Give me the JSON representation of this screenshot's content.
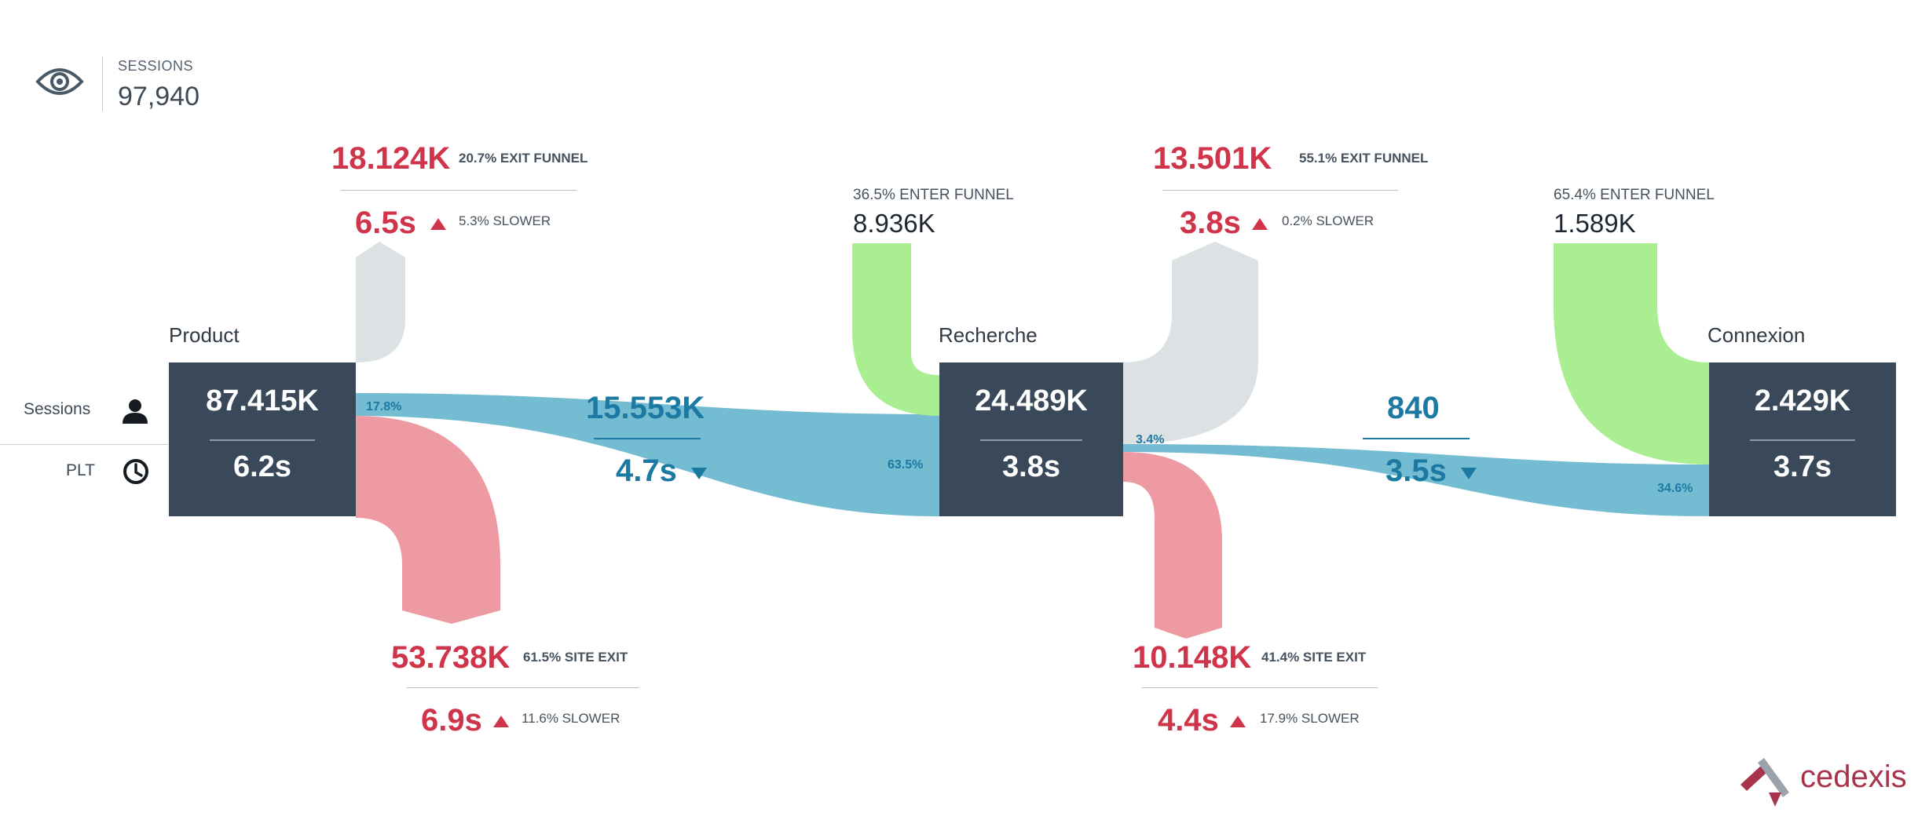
{
  "header": {
    "sessions_label": "SESSIONS",
    "sessions_value": "97,940",
    "icon": "eye-icon"
  },
  "row_labels": {
    "sessions": "Sessions",
    "plt": "PLT"
  },
  "steps": [
    {
      "name": "Product",
      "sessions": "87.415K",
      "plt": "6.2s"
    },
    {
      "name": "Recherche",
      "sessions": "24.489K",
      "plt": "3.8s"
    },
    {
      "name": "Connexion",
      "sessions": "2.429K",
      "plt": "3.7s"
    }
  ],
  "exit_funnel": [
    {
      "value": "18.124K",
      "pct": "20.7% EXIT FUNNEL",
      "time": "6.5s",
      "change": "5.3% SLOWER"
    },
    {
      "value": "13.501K",
      "pct": "55.1% EXIT FUNNEL",
      "time": "3.8s",
      "change": "0.2% SLOWER"
    }
  ],
  "site_exit": [
    {
      "value": "53.738K",
      "pct": "61.5% SITE EXIT",
      "time": "6.9s",
      "change": "11.6% SLOWER"
    },
    {
      "value": "10.148K",
      "pct": "41.4% SITE EXIT",
      "time": "4.4s",
      "change": "17.9% SLOWER"
    }
  ],
  "enter_funnel": [
    {
      "pct": "36.5% ENTER FUNNEL",
      "value": "8.936K"
    },
    {
      "pct": "65.4% ENTER FUNNEL",
      "value": "1.589K"
    }
  ],
  "transitions": [
    {
      "sessions": "15.553K",
      "time": "4.7s",
      "out_pct": "17.8%",
      "in_pct": "63.5%"
    },
    {
      "sessions": "840",
      "time": "3.5s",
      "out_pct": "3.4%",
      "in_pct": "34.6%"
    }
  ],
  "colors": {
    "node": "#39495a",
    "flow": "#74bcd2",
    "exit_funnel": "#dce1e4",
    "site_exit": "#ee9aa3",
    "enter_funnel": "#a9ef91",
    "red_text": "#d0344a",
    "blue_text": "#1c7aa2"
  },
  "brand": {
    "name": "cedexis"
  }
}
